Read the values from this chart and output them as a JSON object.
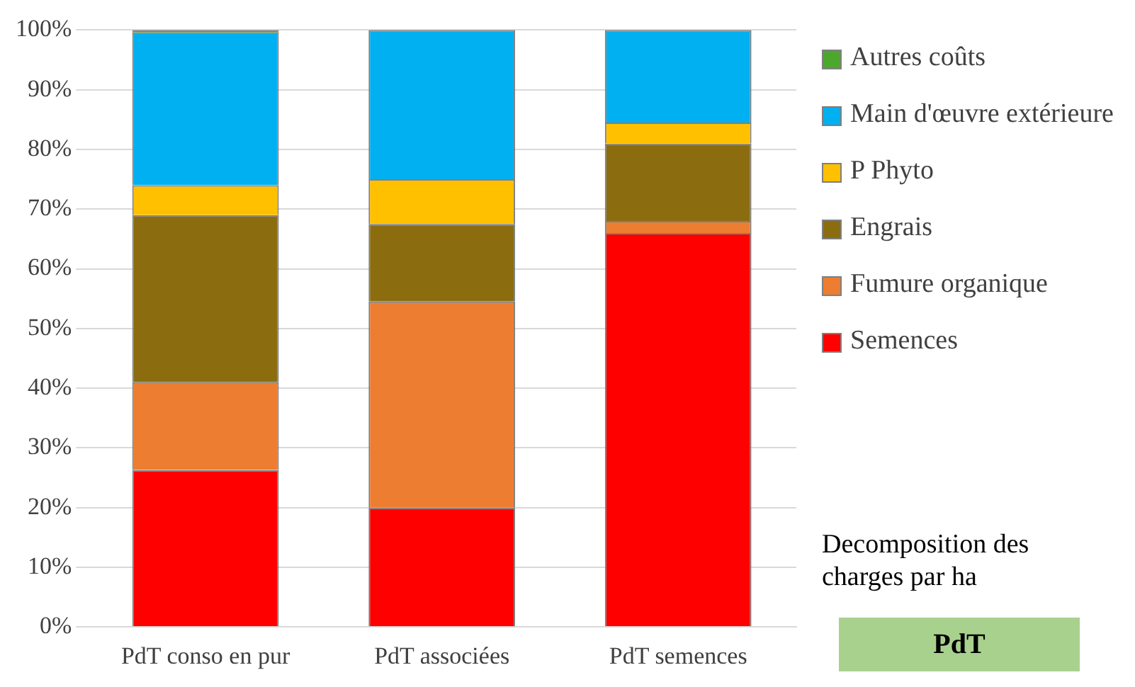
{
  "chart_data": {
    "type": "bar",
    "stacked": true,
    "categories": [
      "PdT conso en pur",
      "PdT associées",
      "PdT semences"
    ],
    "series": [
      {
        "name": "Semences",
        "color": "#ff0000",
        "values": [
          26.3,
          20,
          66
        ]
      },
      {
        "name": "Fumure organique",
        "color": "#ed7d31",
        "values": [
          14.7,
          34.5,
          2
        ]
      },
      {
        "name": "Engrais",
        "color": "#8b6d0f",
        "values": [
          28,
          13,
          13
        ]
      },
      {
        "name": "P Phyto",
        "color": "#ffc000",
        "values": [
          5,
          7.5,
          3.5
        ]
      },
      {
        "name": "Main d'œuvre extérieure",
        "color": "#00b0f0",
        "values": [
          25.6,
          25,
          15.5
        ]
      },
      {
        "name": "Autres coûts",
        "color": "#4ca82c",
        "values": [
          0.4,
          0,
          0
        ]
      }
    ],
    "ylim": [
      0,
      100
    ],
    "yticks": [
      {
        "value": 0,
        "label": "0%"
      },
      {
        "value": 10,
        "label": "10%"
      },
      {
        "value": 20,
        "label": "20%"
      },
      {
        "value": 30,
        "label": "30%"
      },
      {
        "value": 40,
        "label": "40%"
      },
      {
        "value": 50,
        "label": "50%"
      },
      {
        "value": 60,
        "label": "60%"
      },
      {
        "value": 70,
        "label": "70%"
      },
      {
        "value": 80,
        "label": "80%"
      },
      {
        "value": 90,
        "label": "90%"
      },
      {
        "value": 100,
        "label": "100%"
      }
    ],
    "grid": "y",
    "legend": "right",
    "annotations": [
      "Decomposition des charges par ha",
      "PdT"
    ]
  }
}
